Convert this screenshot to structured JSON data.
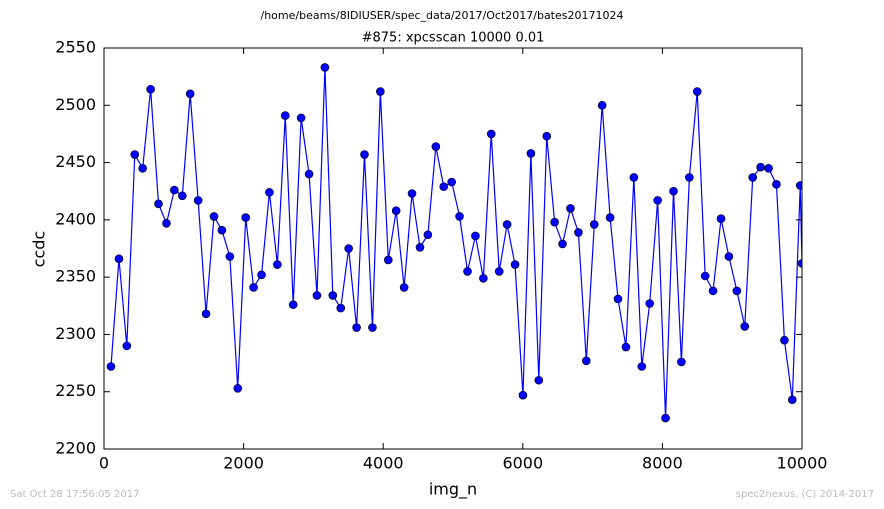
{
  "chart_data": {
    "type": "line",
    "suptitle": "/home/beams/8IDIUSER/spec_data/2017/Oct2017/bates20171024",
    "title": "#875: xpcsscan 10000 0.01",
    "xlabel": "img_n",
    "ylabel": "ccdc",
    "footer_left": "Sat Oct 28 17:56:05 2017",
    "footer_right": "spec2nexus, (C) 2014-2017",
    "xlim": [
      0,
      10000
    ],
    "xticks": [
      0,
      2000,
      4000,
      6000,
      8000,
      10000
    ],
    "ylim": [
      2200,
      2550
    ],
    "yticks": [
      2200,
      2250,
      2300,
      2350,
      2400,
      2450,
      2500,
      2550
    ],
    "x": [
      100,
      214,
      327,
      441,
      554,
      668,
      781,
      895,
      1008,
      1122,
      1235,
      1349,
      1462,
      1576,
      1689,
      1803,
      1916,
      2030,
      2143,
      2257,
      2370,
      2484,
      2597,
      2711,
      2824,
      2938,
      3051,
      3165,
      3278,
      3392,
      3505,
      3619,
      3732,
      3846,
      3959,
      4073,
      4186,
      4300,
      4413,
      4527,
      4640,
      4754,
      4867,
      4981,
      5094,
      5208,
      5321,
      5435,
      5548,
      5662,
      5775,
      5889,
      6002,
      6116,
      6229,
      6343,
      6456,
      6570,
      6683,
      6797,
      6910,
      7024,
      7137,
      7251,
      7364,
      7478,
      7591,
      7705,
      7818,
      7932,
      8045,
      8159,
      8272,
      8386,
      8499,
      8613,
      8726,
      8840,
      8953,
      9067,
      9180,
      9294,
      9407,
      9521,
      9634,
      9748,
      9861,
      9975,
      10000
    ],
    "series": [
      {
        "color": "#0000ff",
        "values": [
          2272,
          2366,
          2290,
          2457,
          2445,
          2514,
          2414,
          2397,
          2426,
          2421,
          2510,
          2417,
          2318,
          2403,
          2391,
          2368,
          2253,
          2402,
          2341,
          2352,
          2424,
          2361,
          2491,
          2326,
          2489,
          2440,
          2334,
          2533,
          2334,
          2323,
          2375,
          2306,
          2457,
          2306,
          2512,
          2365,
          2408,
          2341,
          2423,
          2376,
          2387,
          2464,
          2429,
          2433,
          2403,
          2355,
          2386,
          2349,
          2475,
          2355,
          2396,
          2361,
          2247,
          2458,
          2260,
          2473,
          2398,
          2379,
          2410,
          2389,
          2277,
          2396,
          2500,
          2402,
          2331,
          2289,
          2437,
          2272,
          2327,
          2417,
          2227,
          2425,
          2276,
          2437,
          2512,
          2351,
          2338,
          2401,
          2368,
          2338,
          2307,
          2437,
          2446,
          2445,
          2431,
          2295,
          2243,
          2430,
          2362
        ]
      }
    ]
  }
}
